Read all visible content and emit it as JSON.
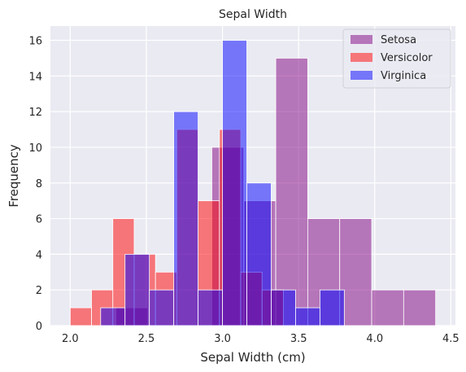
{
  "chart_data": {
    "type": "bar",
    "subtype": "overlaid-histogram",
    "title": "Sepal Width",
    "xlabel": "Sepal Width (cm)",
    "ylabel": "Frequency",
    "xlim": [
      1.87,
      4.53
    ],
    "ylim": [
      0,
      16.8
    ],
    "xticks": [
      2.0,
      2.5,
      3.0,
      3.5,
      4.0,
      4.5
    ],
    "xtick_labels": [
      "2.0",
      "2.5",
      "3.0",
      "3.5",
      "4.0",
      "4.5"
    ],
    "yticks": [
      0,
      2,
      4,
      6,
      8,
      10,
      12,
      14,
      16
    ],
    "ytick_labels": [
      "0",
      "2",
      "4",
      "6",
      "8",
      "10",
      "12",
      "14",
      "16"
    ],
    "grid": true,
    "legend_position": "top-right",
    "series": [
      {
        "name": "Setosa",
        "color": "#800080",
        "alpha": 0.5,
        "bins": [
          {
            "x0": 2.3,
            "x1": 2.51,
            "count": 1
          },
          {
            "x0": 2.51,
            "x1": 2.72,
            "count": 0
          },
          {
            "x0": 2.72,
            "x1": 2.93,
            "count": 0
          },
          {
            "x0": 2.93,
            "x1": 3.14,
            "count": 10
          },
          {
            "x0": 3.14,
            "x1": 3.35,
            "count": 7
          },
          {
            "x0": 3.35,
            "x1": 3.56,
            "count": 15
          },
          {
            "x0": 3.56,
            "x1": 3.77,
            "count": 6
          },
          {
            "x0": 3.77,
            "x1": 3.98,
            "count": 6
          },
          {
            "x0": 3.98,
            "x1": 4.19,
            "count": 2
          },
          {
            "x0": 4.19,
            "x1": 4.4,
            "count": 2
          }
        ]
      },
      {
        "name": "Versicolor",
        "color": "#ff0000",
        "alpha": 0.5,
        "bins": [
          {
            "x0": 2.0,
            "x1": 2.14,
            "count": 1
          },
          {
            "x0": 2.14,
            "x1": 2.28,
            "count": 2
          },
          {
            "x0": 2.28,
            "x1": 2.42,
            "count": 6
          },
          {
            "x0": 2.42,
            "x1": 2.56,
            "count": 4
          },
          {
            "x0": 2.56,
            "x1": 2.7,
            "count": 3
          },
          {
            "x0": 2.7,
            "x1": 2.84,
            "count": 11
          },
          {
            "x0": 2.84,
            "x1": 2.98,
            "count": 7
          },
          {
            "x0": 2.98,
            "x1": 3.12,
            "count": 11
          },
          {
            "x0": 3.12,
            "x1": 3.26,
            "count": 3
          },
          {
            "x0": 3.26,
            "x1": 3.4,
            "count": 2
          }
        ]
      },
      {
        "name": "Virginica",
        "color": "#0000ff",
        "alpha": 0.5,
        "bins": [
          {
            "x0": 2.2,
            "x1": 2.36,
            "count": 1
          },
          {
            "x0": 2.36,
            "x1": 2.52,
            "count": 4
          },
          {
            "x0": 2.52,
            "x1": 2.68,
            "count": 2
          },
          {
            "x0": 2.68,
            "x1": 2.84,
            "count": 12
          },
          {
            "x0": 2.84,
            "x1": 3.0,
            "count": 2
          },
          {
            "x0": 3.0,
            "x1": 3.16,
            "count": 16
          },
          {
            "x0": 3.16,
            "x1": 3.32,
            "count": 8
          },
          {
            "x0": 3.32,
            "x1": 3.48,
            "count": 2
          },
          {
            "x0": 3.48,
            "x1": 3.64,
            "count": 1
          },
          {
            "x0": 3.64,
            "x1": 3.8,
            "count": 2
          }
        ]
      }
    ]
  },
  "colors": {
    "plot_background": "#eaeaf2",
    "grid": "#ffffff",
    "text": "#262626"
  }
}
